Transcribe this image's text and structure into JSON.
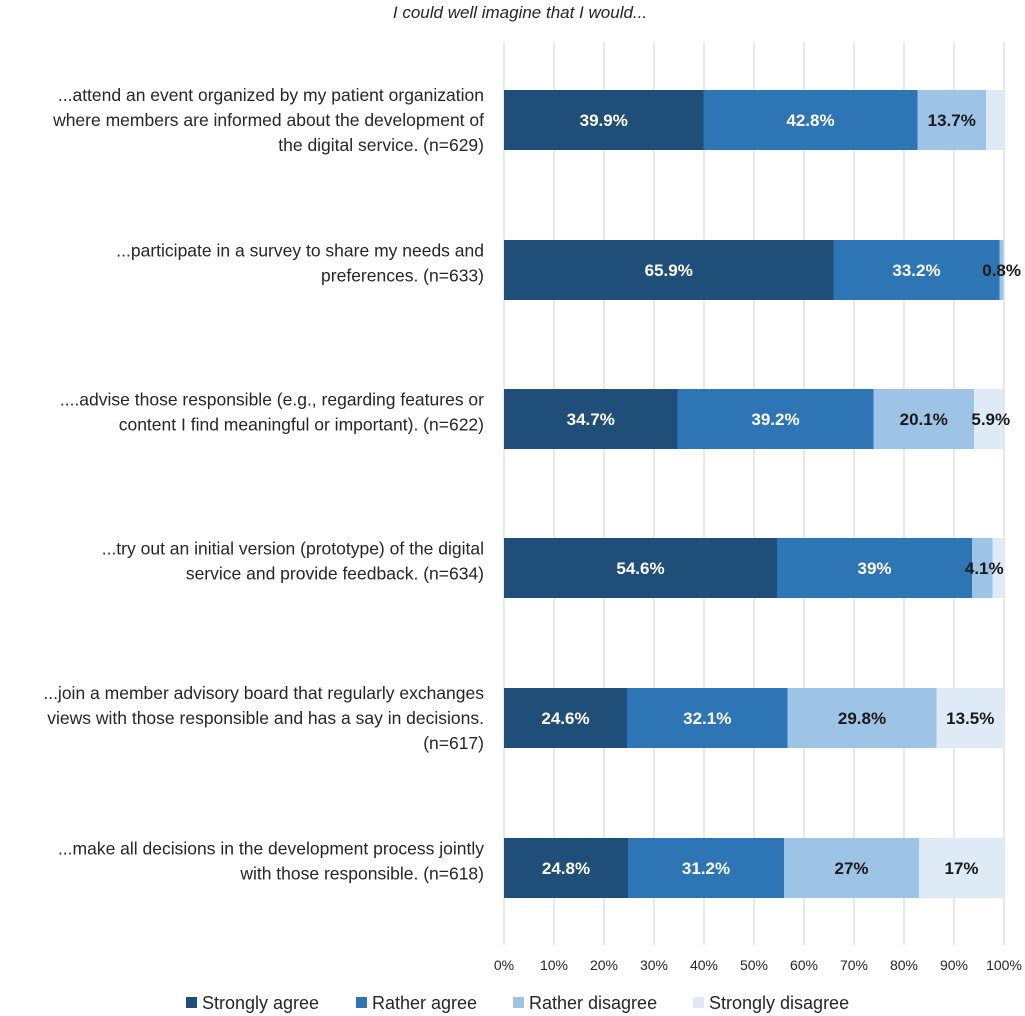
{
  "chart_data": {
    "type": "bar",
    "orientation": "horizontal",
    "stacked": true,
    "title": "I could well imagine that I would...",
    "xlabel": "",
    "ylabel": "",
    "xlim": [
      0,
      100
    ],
    "xticks": [
      "0%",
      "10%",
      "20%",
      "30%",
      "40%",
      "50%",
      "60%",
      "70%",
      "80%",
      "90%",
      "100%"
    ],
    "grid": true,
    "legend_position": "bottom",
    "categories": [
      [
        "...attend an event organized by my patient organization",
        "where members are informed about the development of",
        "the digital service. (n=629)"
      ],
      [
        "...participate in a survey to share my needs and",
        "preferences. (n=633)"
      ],
      [
        "....advise those responsible (e.g., regarding features or",
        "content I find meaningful or important). (n=622)"
      ],
      [
        "...try out an initial version (prototype) of the digital",
        "service and provide feedback. (n=634)"
      ],
      [
        "...join a member advisory board that regularly exchanges",
        "views with those responsible and has a say in decisions.",
        "(n=617)"
      ],
      [
        "...make all decisions in the development process jointly",
        "with those responsible. (n=618)"
      ]
    ],
    "series": [
      {
        "name": "Strongly agree",
        "color": "#1f4e79",
        "values": [
          39.9,
          65.9,
          34.7,
          54.6,
          24.6,
          24.8
        ],
        "labels": [
          "39.9%",
          "65.9%",
          "34.7%",
          "54.6%",
          "24.6%",
          "24.8%"
        ]
      },
      {
        "name": "Rather agree",
        "color": "#2e75b6",
        "values": [
          42.8,
          33.2,
          39.2,
          39.0,
          32.1,
          31.2
        ],
        "labels": [
          "42.8%",
          "33.2%",
          "39.2%",
          "39%",
          "32.1%",
          "31.2%"
        ]
      },
      {
        "name": "Rather disagree",
        "color": "#9dc3e6",
        "values": [
          13.7,
          0.8,
          20.1,
          4.1,
          29.8,
          27.0
        ],
        "labels": [
          "13.7%",
          "0.8%",
          "20.1%",
          "4.1%",
          "29.8%",
          "27%"
        ]
      },
      {
        "name": "Strongly disagree",
        "color": "#deebf7",
        "values": [
          3.6,
          0.1,
          5.9,
          2.3,
          13.5,
          17.0
        ],
        "labels": [
          "",
          "",
          "5.9%",
          "",
          "13.5%",
          "17%"
        ]
      }
    ]
  }
}
